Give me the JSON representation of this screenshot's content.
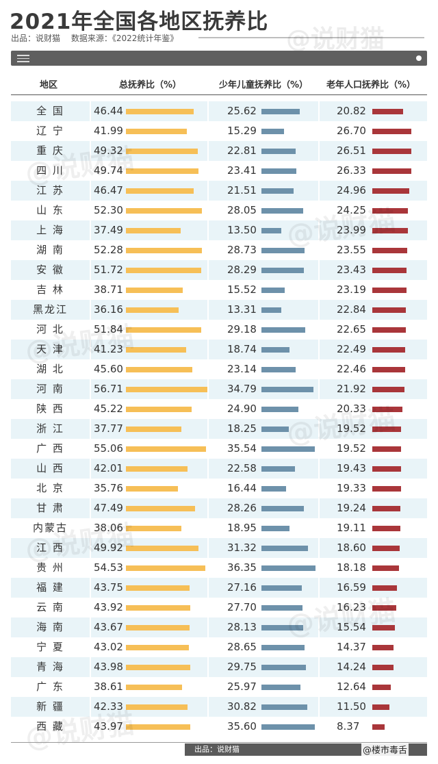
{
  "title": "2021年全国各地区抚养比",
  "meta": {
    "source_label": "出品：说财猫",
    "data_source": "数据来源：《2022统计年鉴》"
  },
  "watermark": "@说财猫",
  "corner_tag": "@楼市毒舌",
  "footer": "出品：说财猫",
  "colors": {
    "total": "#f6bf57",
    "child": "#6d91aa",
    "elderly": "#a9363a",
    "row_alt": "#e9f4f8"
  },
  "icons": {
    "menu": "menu-icon",
    "dot": "dot-icon"
  },
  "chart_data": {
    "type": "table",
    "columns": [
      "地区",
      "总抚养比（%）",
      "少年儿童抚养比（%）",
      "老年人口抚养比（%）"
    ],
    "rows": [
      {
        "region": "全 国",
        "total": "46.44",
        "child": "25.62",
        "elderly": "20.82"
      },
      {
        "region": "辽 宁",
        "total": "41.99",
        "child": "15.29",
        "elderly": "26.70"
      },
      {
        "region": "重 庆",
        "total": "49.32",
        "child": "22.81",
        "elderly": "26.51"
      },
      {
        "region": "四 川",
        "total": "49.74",
        "child": "23.41",
        "elderly": "26.33"
      },
      {
        "region": "江 苏",
        "total": "46.47",
        "child": "21.51",
        "elderly": "24.96"
      },
      {
        "region": "山 东",
        "total": "52.30",
        "child": "28.05",
        "elderly": "24.25"
      },
      {
        "region": "上 海",
        "total": "37.49",
        "child": "13.50",
        "elderly": "23.99"
      },
      {
        "region": "湖 南",
        "total": "52.28",
        "child": "28.73",
        "elderly": "23.55"
      },
      {
        "region": "安 徽",
        "total": "51.72",
        "child": "28.29",
        "elderly": "23.43"
      },
      {
        "region": "吉 林",
        "total": "38.71",
        "child": "15.52",
        "elderly": "23.19"
      },
      {
        "region": "黑龙江",
        "total": "36.16",
        "child": "13.31",
        "elderly": "22.84"
      },
      {
        "region": "河 北",
        "total": "51.84",
        "child": "29.18",
        "elderly": "22.65"
      },
      {
        "region": "天 津",
        "total": "41.23",
        "child": "18.74",
        "elderly": "22.49"
      },
      {
        "region": "湖 北",
        "total": "45.60",
        "child": "23.14",
        "elderly": "22.46"
      },
      {
        "region": "河 南",
        "total": "56.71",
        "child": "34.79",
        "elderly": "21.92"
      },
      {
        "region": "陕 西",
        "total": "45.22",
        "child": "24.90",
        "elderly": "20.33"
      },
      {
        "region": "浙 江",
        "total": "37.77",
        "child": "18.25",
        "elderly": "19.52"
      },
      {
        "region": "广 西",
        "total": "55.06",
        "child": "35.54",
        "elderly": "19.52"
      },
      {
        "region": "山 西",
        "total": "42.01",
        "child": "22.58",
        "elderly": "19.43"
      },
      {
        "region": "北 京",
        "total": "35.76",
        "child": "16.44",
        "elderly": "19.33"
      },
      {
        "region": "甘 肃",
        "total": "47.49",
        "child": "28.26",
        "elderly": "19.24"
      },
      {
        "region": "内蒙古",
        "total": "38.06",
        "child": "18.95",
        "elderly": "19.11"
      },
      {
        "region": "江 西",
        "total": "49.92",
        "child": "31.32",
        "elderly": "18.60"
      },
      {
        "region": "贵 州",
        "total": "54.53",
        "child": "36.35",
        "elderly": "18.18"
      },
      {
        "region": "福 建",
        "total": "43.75",
        "child": "27.16",
        "elderly": "16.59"
      },
      {
        "region": "云 南",
        "total": "43.92",
        "child": "27.70",
        "elderly": "16.23"
      },
      {
        "region": "海 南",
        "total": "43.67",
        "child": "28.13",
        "elderly": "15.54"
      },
      {
        "region": "宁 夏",
        "total": "43.02",
        "child": "28.65",
        "elderly": "14.37"
      },
      {
        "region": "青 海",
        "total": "43.98",
        "child": "29.75",
        "elderly": "14.24"
      },
      {
        "region": "广 东",
        "total": "38.61",
        "child": "25.97",
        "elderly": "12.64"
      },
      {
        "region": "新 疆",
        "total": "42.33",
        "child": "30.82",
        "elderly": "11.50"
      },
      {
        "region": "西 藏",
        "total": "43.97",
        "child": "35.60",
        "elderly": "8.37"
      }
    ]
  }
}
